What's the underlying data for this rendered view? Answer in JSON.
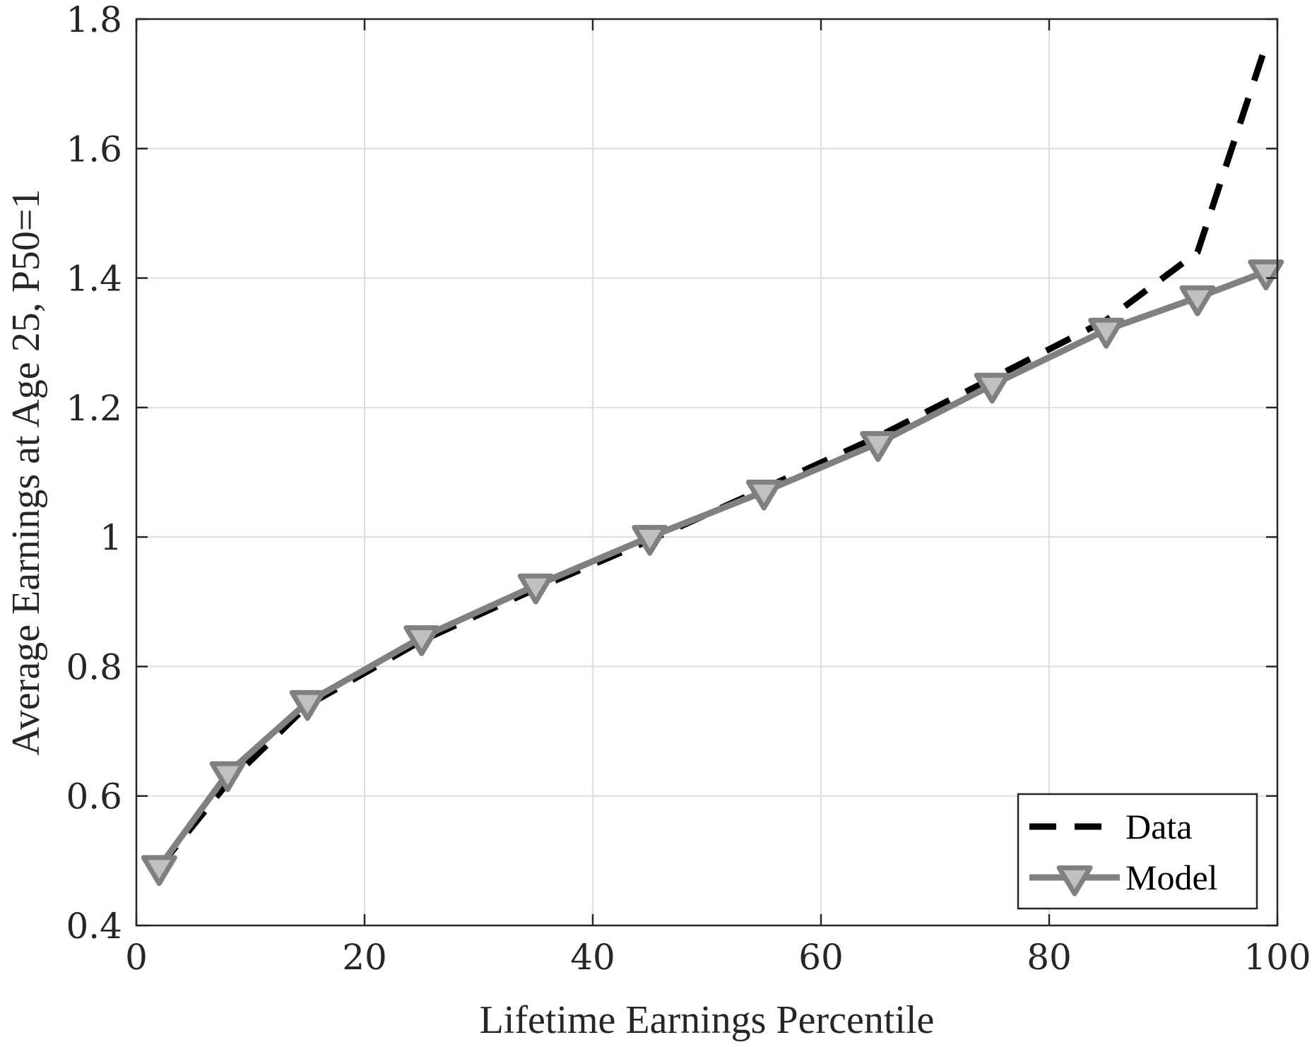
{
  "chart_data": {
    "type": "line",
    "xlabel": "Lifetime Earnings Percentile",
    "ylabel": "Average Earnings at Age 25, P50=1",
    "xlim": [
      0,
      100
    ],
    "ylim": [
      0.4,
      1.8
    ],
    "xticks": [
      "0",
      "20",
      "40",
      "60",
      "80",
      "100"
    ],
    "yticks": [
      "0.4",
      "0.6",
      "0.8",
      "1",
      "1.2",
      "1.4",
      "1.6",
      "1.8"
    ],
    "grid": true,
    "legend_position": "bottom-right",
    "series": [
      {
        "name": "Data",
        "style": "dashed",
        "color": "#000000",
        "x": [
          2,
          8,
          15,
          25,
          35,
          45,
          55,
          65,
          75,
          85,
          93,
          99
        ],
        "y": [
          0.49,
          0.62,
          0.74,
          0.84,
          0.92,
          0.995,
          1.075,
          1.155,
          1.245,
          1.335,
          1.44,
          1.76
        ]
      },
      {
        "name": "Model",
        "style": "solid",
        "marker": "triangle-down",
        "color": "#808080",
        "marker_fill": "#c0c0c0",
        "x": [
          2,
          8,
          15,
          25,
          35,
          45,
          55,
          65,
          75,
          85,
          93,
          99
        ],
        "y": [
          0.49,
          0.635,
          0.745,
          0.845,
          0.925,
          1.0,
          1.07,
          1.145,
          1.235,
          1.32,
          1.37,
          1.41
        ]
      }
    ]
  }
}
